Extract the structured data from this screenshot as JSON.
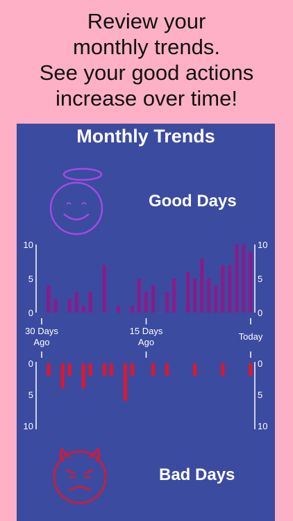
{
  "caption": {
    "lines": [
      "Review your",
      "monthly trends.",
      "See your good actions",
      "increase over time!"
    ]
  },
  "panel": {
    "title": "Monthly Trends",
    "good_label": "Good Days",
    "bad_label": "Bad Days"
  },
  "colors": {
    "background": "#FDB0C6",
    "panel": "#3B4BA0",
    "good_bar": "#8B1A8B",
    "bad_bar": "#E3152B",
    "halo": "#A24BE0",
    "bad_face": "#E3152B"
  },
  "icons": [
    "angel-smiley-icon",
    "devil-angry-icon"
  ],
  "chart_data": [
    {
      "type": "bar",
      "title": "Good Days",
      "categories": [
        "30 Days Ago",
        "",
        "",
        "",
        "",
        "",
        "",
        "",
        "",
        "",
        "",
        "",
        "",
        "",
        "",
        "15 Days Ago",
        "",
        "",
        "",
        "",
        "",
        "",
        "",
        "",
        "",
        "",
        "",
        "",
        "",
        "",
        "Today"
      ],
      "values": [
        0,
        4,
        2,
        0,
        2,
        3,
        1,
        3,
        0,
        7,
        0,
        1,
        0,
        1,
        5,
        3,
        4,
        0,
        3,
        5,
        0,
        6,
        5,
        8,
        5,
        4,
        7,
        7,
        10,
        10,
        9
      ],
      "ylim": [
        0,
        10
      ],
      "yticks": [
        0,
        5,
        10
      ]
    },
    {
      "type": "bar",
      "title": "Bad Days",
      "categories": [
        "30 Days Ago",
        "",
        "",
        "",
        "",
        "",
        "",
        "",
        "",
        "",
        "",
        "",
        "",
        "",
        "",
        "15 Days Ago",
        "",
        "",
        "",
        "",
        "",
        "",
        "",
        "",
        "",
        "",
        "",
        "",
        "",
        "",
        "Today"
      ],
      "values": [
        0,
        2,
        0,
        4,
        2,
        0,
        4,
        2,
        0,
        2,
        2,
        0,
        6,
        2,
        0,
        0,
        2,
        0,
        2,
        0,
        0,
        0,
        2,
        0,
        0,
        0,
        2,
        0,
        0,
        0,
        2
      ],
      "ylim": [
        0,
        10
      ],
      "yticks": [
        0,
        5,
        10
      ],
      "inverted": true
    }
  ],
  "xaxis": {
    "ticks": [
      {
        "label_lines": [
          "30 Days",
          "Ago"
        ],
        "day": 0
      },
      {
        "label_lines": [
          "15 Days",
          "Ago"
        ],
        "day": 15
      },
      {
        "label_lines": [
          "Today"
        ],
        "day": 30
      }
    ]
  }
}
